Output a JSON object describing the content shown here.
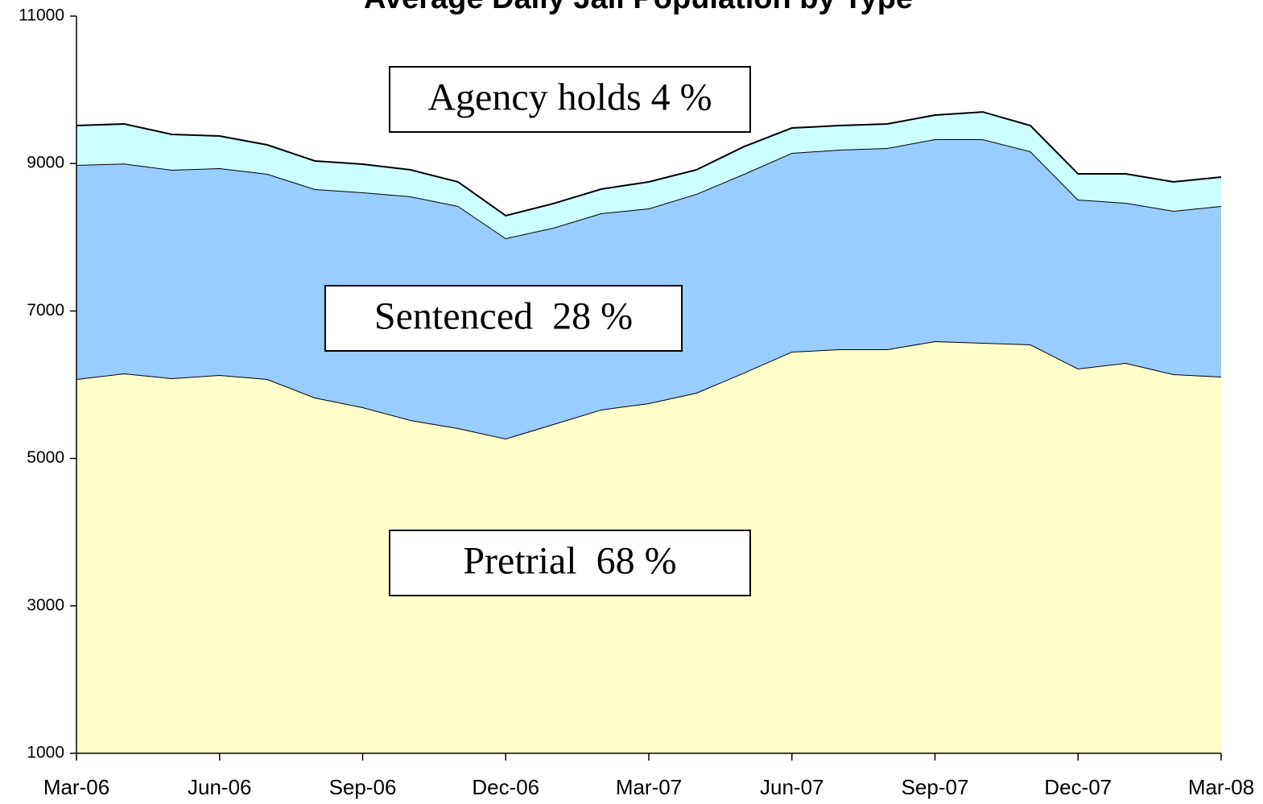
{
  "chart_data": {
    "type": "stacked_area",
    "title": "Average Daily Jail Population by Type",
    "categories": [
      "Mar-06",
      null,
      null,
      "Jun-06",
      null,
      null,
      "Sep-06",
      null,
      null,
      "Dec-06",
      null,
      null,
      "Mar-07",
      null,
      null,
      "Jun-07",
      null,
      null,
      "Sep-07",
      null,
      null,
      "Dec-07",
      null,
      null,
      "Mar-08"
    ],
    "series": [
      {
        "name": "Pretrial",
        "color": "#ffffcc",
        "values": [
          6076,
          6153,
          6087,
          6131,
          6076,
          5825,
          5694,
          5520,
          5410,
          5269,
          5465,
          5662,
          5749,
          5891,
          6164,
          6448,
          6480,
          6480,
          6590,
          6568,
          6546,
          6218,
          6295,
          6142,
          6109
        ]
      },
      {
        "name": "Sentenced",
        "color": "#99ccff",
        "values": [
          2904,
          2847,
          2828,
          2806,
          2784,
          2828,
          2915,
          3035,
          3014,
          2718,
          2664,
          2663,
          2642,
          2697,
          2696,
          2696,
          2708,
          2730,
          2740,
          2762,
          2620,
          2293,
          2172,
          2216,
          2315
        ]
      },
      {
        "name": "Agency holds",
        "color": "#ccffff",
        "values": [
          535,
          537,
          480,
          436,
          393,
          382,
          382,
          360,
          327,
          306,
          328,
          328,
          360,
          327,
          371,
          338,
          327,
          327,
          327,
          370,
          349,
          349,
          393,
          393,
          393
        ]
      }
    ],
    "annotations": [
      "Agency holds 4 %",
      "Sentenced  28 %",
      "Pretrial  68 %"
    ],
    "ylim": [
      1000,
      11000
    ],
    "yticks": [
      1000,
      3000,
      5000,
      7000,
      9000,
      11000
    ]
  }
}
